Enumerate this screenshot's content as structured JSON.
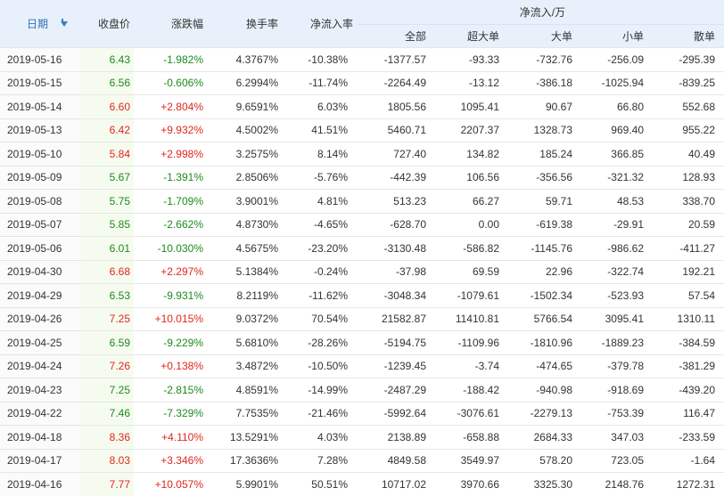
{
  "headers": {
    "date": "日期",
    "close": "收盘价",
    "change": "涨跌幅",
    "turnover": "换手率",
    "net_rate": "净流入率",
    "net_group": "净流入/万",
    "all": "全部",
    "super_large": "超大单",
    "large": "大单",
    "small": "小单",
    "retail": "散单"
  },
  "rows": [
    {
      "date": "2019-05-16",
      "close": "6.43",
      "change": "-1.982%",
      "turnover": "4.3767%",
      "net_rate": "-10.38%",
      "all": "-1377.57",
      "super_large": "-93.33",
      "large": "-732.76",
      "small": "-256.09",
      "retail": "-295.39",
      "dir": "down"
    },
    {
      "date": "2019-05-15",
      "close": "6.56",
      "change": "-0.606%",
      "turnover": "6.2994%",
      "net_rate": "-11.74%",
      "all": "-2264.49",
      "super_large": "-13.12",
      "large": "-386.18",
      "small": "-1025.94",
      "retail": "-839.25",
      "dir": "down"
    },
    {
      "date": "2019-05-14",
      "close": "6.60",
      "change": "+2.804%",
      "turnover": "9.6591%",
      "net_rate": "6.03%",
      "all": "1805.56",
      "super_large": "1095.41",
      "large": "90.67",
      "small": "66.80",
      "retail": "552.68",
      "dir": "up"
    },
    {
      "date": "2019-05-13",
      "close": "6.42",
      "change": "+9.932%",
      "turnover": "4.5002%",
      "net_rate": "41.51%",
      "all": "5460.71",
      "super_large": "2207.37",
      "large": "1328.73",
      "small": "969.40",
      "retail": "955.22",
      "dir": "up"
    },
    {
      "date": "2019-05-10",
      "close": "5.84",
      "change": "+2.998%",
      "turnover": "3.2575%",
      "net_rate": "8.14%",
      "all": "727.40",
      "super_large": "134.82",
      "large": "185.24",
      "small": "366.85",
      "retail": "40.49",
      "dir": "up"
    },
    {
      "date": "2019-05-09",
      "close": "5.67",
      "change": "-1.391%",
      "turnover": "2.8506%",
      "net_rate": "-5.76%",
      "all": "-442.39",
      "super_large": "106.56",
      "large": "-356.56",
      "small": "-321.32",
      "retail": "128.93",
      "dir": "down"
    },
    {
      "date": "2019-05-08",
      "close": "5.75",
      "change": "-1.709%",
      "turnover": "3.9001%",
      "net_rate": "4.81%",
      "all": "513.23",
      "super_large": "66.27",
      "large": "59.71",
      "small": "48.53",
      "retail": "338.70",
      "dir": "down"
    },
    {
      "date": "2019-05-07",
      "close": "5.85",
      "change": "-2.662%",
      "turnover": "4.8730%",
      "net_rate": "-4.65%",
      "all": "-628.70",
      "super_large": "0.00",
      "large": "-619.38",
      "small": "-29.91",
      "retail": "20.59",
      "dir": "down"
    },
    {
      "date": "2019-05-06",
      "close": "6.01",
      "change": "-10.030%",
      "turnover": "4.5675%",
      "net_rate": "-23.20%",
      "all": "-3130.48",
      "super_large": "-586.82",
      "large": "-1145.76",
      "small": "-986.62",
      "retail": "-411.27",
      "dir": "down"
    },
    {
      "date": "2019-04-30",
      "close": "6.68",
      "change": "+2.297%",
      "turnover": "5.1384%",
      "net_rate": "-0.24%",
      "all": "-37.98",
      "super_large": "69.59",
      "large": "22.96",
      "small": "-322.74",
      "retail": "192.21",
      "dir": "up"
    },
    {
      "date": "2019-04-29",
      "close": "6.53",
      "change": "-9.931%",
      "turnover": "8.2119%",
      "net_rate": "-11.62%",
      "all": "-3048.34",
      "super_large": "-1079.61",
      "large": "-1502.34",
      "small": "-523.93",
      "retail": "57.54",
      "dir": "down"
    },
    {
      "date": "2019-04-26",
      "close": "7.25",
      "change": "+10.015%",
      "turnover": "9.0372%",
      "net_rate": "70.54%",
      "all": "21582.87",
      "super_large": "11410.81",
      "large": "5766.54",
      "small": "3095.41",
      "retail": "1310.11",
      "dir": "up"
    },
    {
      "date": "2019-04-25",
      "close": "6.59",
      "change": "-9.229%",
      "turnover": "5.6810%",
      "net_rate": "-28.26%",
      "all": "-5194.75",
      "super_large": "-1109.96",
      "large": "-1810.96",
      "small": "-1889.23",
      "retail": "-384.59",
      "dir": "down"
    },
    {
      "date": "2019-04-24",
      "close": "7.26",
      "change": "+0.138%",
      "turnover": "3.4872%",
      "net_rate": "-10.50%",
      "all": "-1239.45",
      "super_large": "-3.74",
      "large": "-474.65",
      "small": "-379.78",
      "retail": "-381.29",
      "dir": "up"
    },
    {
      "date": "2019-04-23",
      "close": "7.25",
      "change": "-2.815%",
      "turnover": "4.8591%",
      "net_rate": "-14.99%",
      "all": "-2487.29",
      "super_large": "-188.42",
      "large": "-940.98",
      "small": "-918.69",
      "retail": "-439.20",
      "dir": "down"
    },
    {
      "date": "2019-04-22",
      "close": "7.46",
      "change": "-7.329%",
      "turnover": "7.7535%",
      "net_rate": "-21.46%",
      "all": "-5992.64",
      "super_large": "-3076.61",
      "large": "-2279.13",
      "small": "-753.39",
      "retail": "116.47",
      "dir": "down"
    },
    {
      "date": "2019-04-18",
      "close": "8.36",
      "change": "+4.110%",
      "turnover": "13.5291%",
      "net_rate": "4.03%",
      "all": "2138.89",
      "super_large": "-658.88",
      "large": "2684.33",
      "small": "347.03",
      "retail": "-233.59",
      "dir": "up"
    },
    {
      "date": "2019-04-17",
      "close": "8.03",
      "change": "+3.346%",
      "turnover": "17.3636%",
      "net_rate": "7.28%",
      "all": "4849.58",
      "super_large": "3549.97",
      "large": "578.20",
      "small": "723.05",
      "retail": "-1.64",
      "dir": "up"
    },
    {
      "date": "2019-04-16",
      "close": "7.77",
      "change": "+10.057%",
      "turnover": "5.9901%",
      "net_rate": "50.51%",
      "all": "10717.02",
      "super_large": "3970.66",
      "large": "3325.30",
      "small": "2148.76",
      "retail": "1272.31",
      "dir": "up"
    }
  ]
}
